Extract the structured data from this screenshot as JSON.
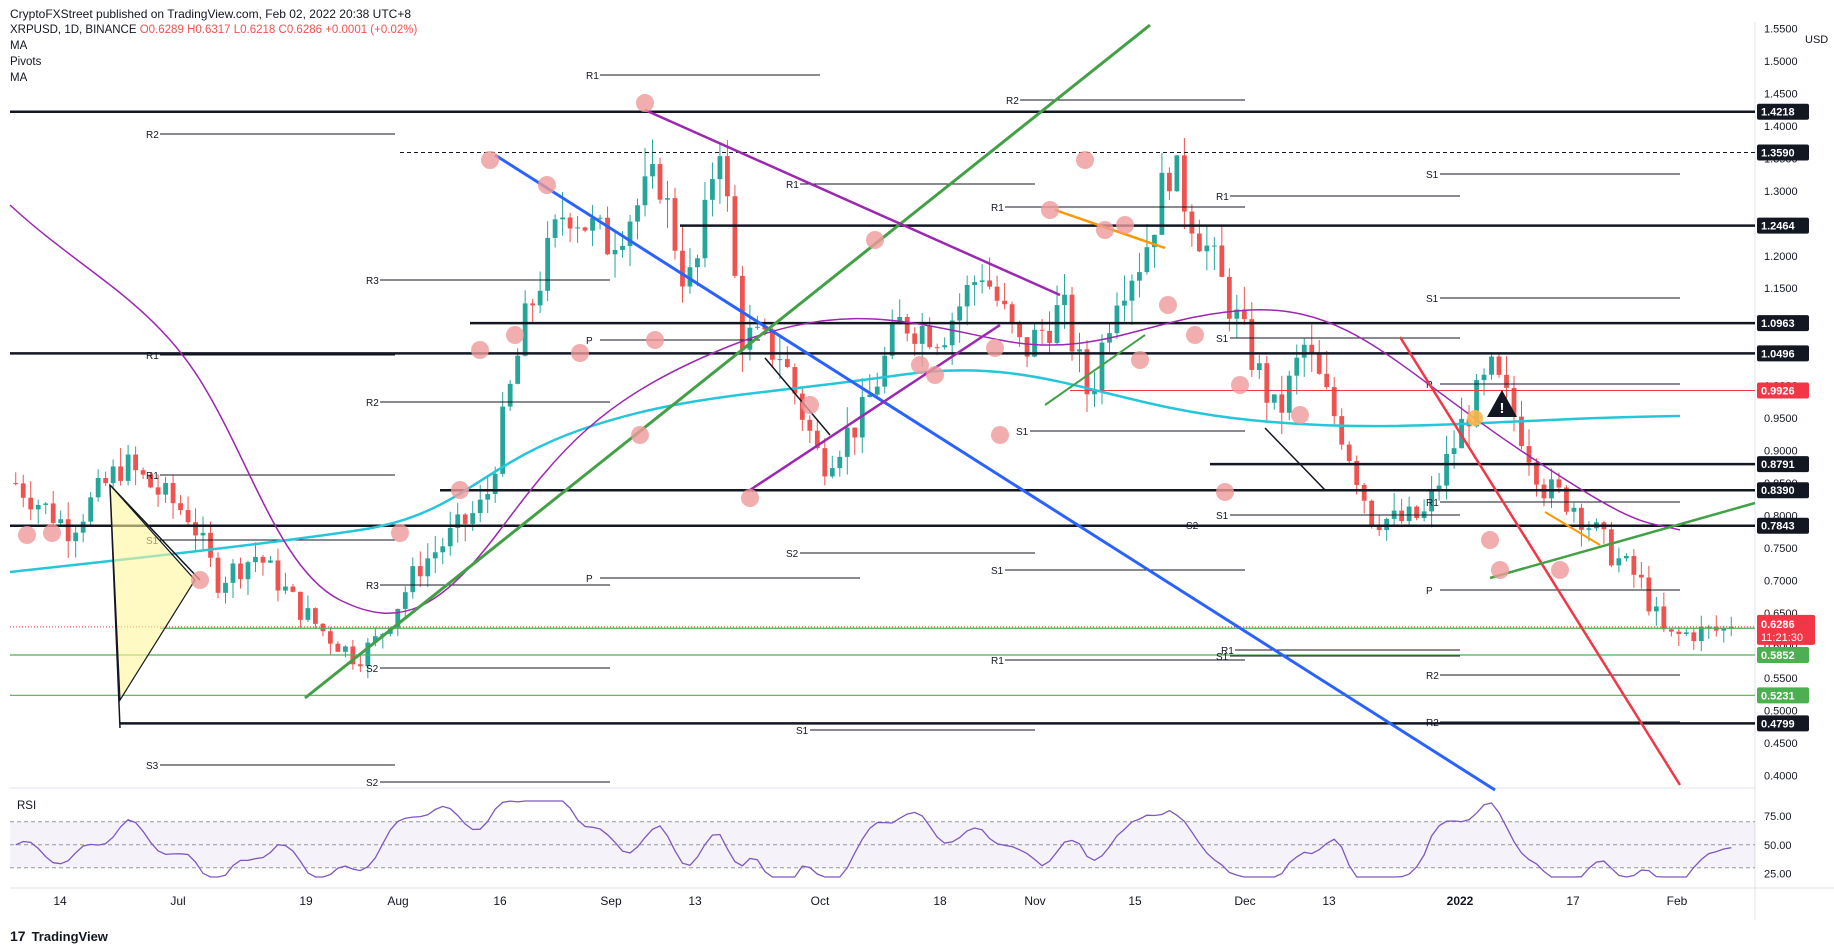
{
  "header": {
    "published": "CryptoFXStreet published on TradingView.com, Feb 02, 2022 20:38 UTC+8",
    "symbol_line": "XRPUSD, 1D, BINANCE",
    "open": "O0.6289",
    "high": "H0.6317",
    "low": "L0.6218",
    "close": "C0.6286",
    "change": "+0.0001 (+0.02%)",
    "indicators": [
      "MA",
      "Pivots",
      "MA"
    ]
  },
  "currency": "USD",
  "rsi_label": "RSI",
  "footer": {
    "logo": "17",
    "brand": "TradingView"
  },
  "colors": {
    "up": "#26a69a",
    "down": "#ef5350",
    "ma_cyan": "#26c6da",
    "ma_purple": "#9c27b0",
    "trend_blue": "#2962ff",
    "trend_green": "#43a047",
    "trend_red": "#f23645",
    "trend_orange": "#ff9800",
    "price_tag": "#f23645",
    "support_green": "#4caf50"
  },
  "chart_data": {
    "type": "candlestick",
    "title": "",
    "ylim": [
      0.385,
      1.56
    ],
    "y_ticks": [
      "1.5500",
      "1.5000",
      "1.4500",
      "1.4000",
      "1.3500",
      "1.3000",
      "1.2500",
      "1.2000",
      "1.1500",
      "1.1000",
      "1.0500",
      "1.0000",
      "0.9500",
      "0.9000",
      "0.8500",
      "0.8000",
      "0.7500",
      "0.7000",
      "0.6500",
      "0.6000",
      "0.5500",
      "0.5000",
      "0.4500",
      "0.4000"
    ],
    "x_ticks": [
      "14",
      "Jul",
      "19",
      "Aug",
      "16",
      "Sep",
      "13",
      "Oct",
      "18",
      "Nov",
      "15",
      "Dec",
      "13",
      "2022",
      "17",
      "Feb"
    ],
    "horizontal_levels": [
      {
        "price": 1.4218,
        "label": "1.4218",
        "style": "solid"
      },
      {
        "price": 1.359,
        "label": "1.3590",
        "style": "dashed"
      },
      {
        "price": 1.2464,
        "label": "1.2464",
        "style": "solid"
      },
      {
        "price": 1.0963,
        "label": "1.0963",
        "style": "solid"
      },
      {
        "price": 1.0496,
        "label": "1.0496",
        "style": "solid"
      },
      {
        "price": 0.9926,
        "label": "0.9926",
        "style": "red"
      },
      {
        "price": 0.8791,
        "label": "0.8791",
        "style": "solid"
      },
      {
        "price": 0.839,
        "label": "0.8390",
        "style": "solid"
      },
      {
        "price": 0.7843,
        "label": "0.7843",
        "style": "solid"
      },
      {
        "price": 0.6264,
        "label": "0.6264",
        "style": "solid"
      },
      {
        "price": 0.5852,
        "label": "0.5852",
        "style": "green"
      },
      {
        "price": 0.5231,
        "label": "0.5231",
        "style": "green"
      },
      {
        "price": 0.4799,
        "label": "0.4799",
        "style": "solid"
      }
    ],
    "last_price": {
      "price": 0.6286,
      "label": "0.6286",
      "countdown": "11:21:30"
    },
    "pivot_labels": [
      "R1",
      "R2",
      "R1",
      "R3",
      "R1",
      "R2",
      "R1",
      "P",
      "R1",
      "S1",
      "S1",
      "R2",
      "R1",
      "P",
      "S1",
      "S1",
      "S2",
      "S2",
      "S3",
      "S2",
      "S1",
      "R1",
      "P",
      "S1",
      "R2",
      "R3",
      "R1",
      "R2",
      "R1",
      "P",
      "S1",
      "S1",
      "S1",
      "S2"
    ],
    "rsi": {
      "levels": [
        "75.00",
        "50.00",
        "25.00"
      ],
      "ylim": [
        15,
        95
      ]
    }
  }
}
